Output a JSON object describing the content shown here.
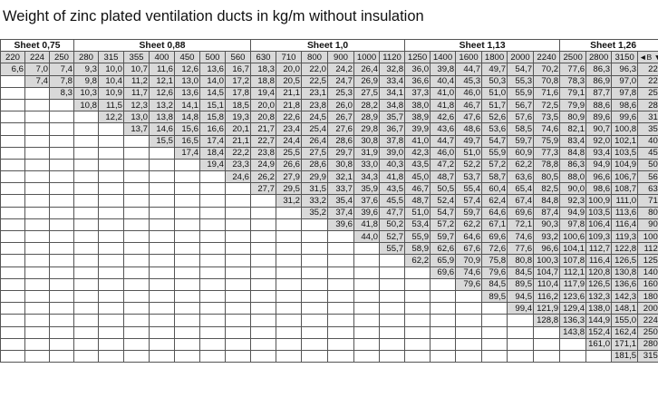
{
  "title": "Weight of zinc plated ventilation ducts in kg/m without insulation",
  "sheet_groups": [
    {
      "label": "Sheet 0,75",
      "span": 3
    },
    {
      "label": "Sheet 0,88",
      "span": 7
    },
    {
      "label": "Sheet 1,0",
      "span": 6
    },
    {
      "label": "Sheet 1,13",
      "span": 6
    },
    {
      "label": "Sheet 1,26",
      "span": 4
    }
  ],
  "widths": [
    "220",
    "224",
    "250",
    "280",
    "315",
    "355",
    "400",
    "450",
    "500",
    "560",
    "630",
    "710",
    "800",
    "900",
    "1000",
    "1120",
    "1250",
    "1400",
    "1600",
    "1800",
    "2000",
    "2240",
    "2500",
    "2800",
    "3150"
  ],
  "corner_label": "◄B ▼H",
  "rows": [
    {
      "h": "220",
      "v": [
        "6,6",
        "7,0",
        "7,4",
        "9,3",
        "10,0",
        "10,7",
        "11,6",
        "12,6",
        "13,6",
        "16,7",
        "18,3",
        "20,0",
        "22,0",
        "24,2",
        "26,4",
        "32,8",
        "36,0",
        "39,8",
        "44,7",
        "49,7",
        "54,7",
        "70,2",
        "77,6",
        "86,3",
        "96,3"
      ]
    },
    {
      "h": "224",
      "v": [
        "",
        "7,4",
        "7,8",
        "9,8",
        "10,4",
        "11,2",
        "12,1",
        "13,0",
        "14,0",
        "17,2",
        "18,8",
        "20,5",
        "22,5",
        "24,7",
        "26,9",
        "33,4",
        "36,6",
        "40,4",
        "45,3",
        "50,3",
        "55,3",
        "70,8",
        "78,3",
        "86,9",
        "97,0"
      ]
    },
    {
      "h": "250",
      "v": [
        "",
        "",
        "8,3",
        "10,3",
        "10,9",
        "11,7",
        "12,6",
        "13,6",
        "14,5",
        "17,8",
        "19,4",
        "21,1",
        "23,1",
        "25,3",
        "27,5",
        "34,1",
        "37,3",
        "41,0",
        "46,0",
        "51,0",
        "55,9",
        "71,6",
        "79,1",
        "87,7",
        "97,8"
      ]
    },
    {
      "h": "280",
      "v": [
        "",
        "",
        "",
        "10,8",
        "11,5",
        "12,3",
        "13,2",
        "14,1",
        "15,1",
        "18,5",
        "20,0",
        "21,8",
        "23,8",
        "26,0",
        "28,2",
        "34,8",
        "38,0",
        "41,8",
        "46,7",
        "51,7",
        "56,7",
        "72,5",
        "79,9",
        "88,6",
        "98,6"
      ]
    },
    {
      "h": "315",
      "v": [
        "",
        "",
        "",
        "",
        "12,2",
        "13,0",
        "13,8",
        "14,8",
        "15,8",
        "19,3",
        "20,8",
        "22,6",
        "24,5",
        "26,7",
        "28,9",
        "35,7",
        "38,9",
        "42,6",
        "47,6",
        "52,6",
        "57,6",
        "73,5",
        "80,9",
        "89,6",
        "99,6"
      ]
    },
    {
      "h": "355",
      "v": [
        "",
        "",
        "",
        "",
        "",
        "13,7",
        "14,6",
        "15,6",
        "16,6",
        "20,1",
        "21,7",
        "23,4",
        "25,4",
        "27,6",
        "29,8",
        "36,7",
        "39,9",
        "43,6",
        "48,6",
        "53,6",
        "58,5",
        "74,6",
        "82,1",
        "90,7",
        "100,8"
      ]
    },
    {
      "h": "400",
      "v": [
        "",
        "",
        "",
        "",
        "",
        "",
        "15,5",
        "16,5",
        "17,4",
        "21,1",
        "22,7",
        "24,4",
        "26,4",
        "28,6",
        "30,8",
        "37,8",
        "41,0",
        "44,7",
        "49,7",
        "54,7",
        "59,7",
        "75,9",
        "83,4",
        "92,0",
        "102,1"
      ]
    },
    {
      "h": "450",
      "v": [
        "",
        "",
        "",
        "",
        "",
        "",
        "",
        "17,4",
        "18,4",
        "22,2",
        "23,8",
        "25,5",
        "27,5",
        "29,7",
        "31,9",
        "39,0",
        "42,3",
        "46,0",
        "51,0",
        "55,9",
        "60,9",
        "77,3",
        "84,8",
        "93,4",
        "103,5"
      ]
    },
    {
      "h": "500",
      "v": [
        "",
        "",
        "",
        "",
        "",
        "",
        "",
        "",
        "19,4",
        "23,3",
        "24,9",
        "26,6",
        "28,6",
        "30,8",
        "33,0",
        "40,3",
        "43,5",
        "47,2",
        "52,2",
        "57,2",
        "62,2",
        "78,8",
        "86,3",
        "94,9",
        "104,9"
      ]
    },
    {
      "h": "560",
      "v": [
        "",
        "",
        "",
        "",
        "",
        "",
        "",
        "",
        "",
        "24,6",
        "26,2",
        "27,9",
        "29,9",
        "32,1",
        "34,3",
        "41,8",
        "45,0",
        "48,7",
        "53,7",
        "58,7",
        "63,6",
        "80,5",
        "88,0",
        "96,6",
        "106,7"
      ]
    },
    {
      "h": "630",
      "v": [
        "",
        "",
        "",
        "",
        "",
        "",
        "",
        "",
        "",
        "",
        "27,7",
        "29,5",
        "31,5",
        "33,7",
        "35,9",
        "43,5",
        "46,7",
        "50,5",
        "55,4",
        "60,4",
        "65,4",
        "82,5",
        "90,0",
        "98,6",
        "108,7"
      ]
    },
    {
      "h": "710",
      "v": [
        "",
        "",
        "",
        "",
        "",
        "",
        "",
        "",
        "",
        "",
        "",
        "31,2",
        "33,2",
        "35,4",
        "37,6",
        "45,5",
        "48,7",
        "52,4",
        "57,4",
        "62,4",
        "67,4",
        "84,8",
        "92,3",
        "100,9",
        "111,0"
      ]
    },
    {
      "h": "800",
      "v": [
        "",
        "",
        "",
        "",
        "",
        "",
        "",
        "",
        "",
        "",
        "",
        "",
        "35,2",
        "37,4",
        "39,6",
        "47,7",
        "51,0",
        "54,7",
        "59,7",
        "64,6",
        "69,6",
        "87,4",
        "94,9",
        "103,5",
        "113,6"
      ]
    },
    {
      "h": "900",
      "v": [
        "",
        "",
        "",
        "",
        "",
        "",
        "",
        "",
        "",
        "",
        "",
        "",
        "",
        "39,6",
        "41,8",
        "50,2",
        "53,4",
        "57,2",
        "62,2",
        "67,1",
        "72,1",
        "90,3",
        "97,8",
        "106,4",
        "116,4"
      ]
    },
    {
      "h": "1000",
      "v": [
        "",
        "",
        "",
        "",
        "",
        "",
        "",
        "",
        "",
        "",
        "",
        "",
        "",
        "",
        "44,0",
        "52,7",
        "55,9",
        "59,7",
        "64,6",
        "69,6",
        "74,6",
        "93,2",
        "100,6",
        "109,3",
        "119,3"
      ]
    },
    {
      "h": "1120",
      "v": [
        "",
        "",
        "",
        "",
        "",
        "",
        "",
        "",
        "",
        "",
        "",
        "",
        "",
        "",
        "",
        "55,7",
        "58,9",
        "62,6",
        "67,6",
        "72,6",
        "77,6",
        "96,6",
        "104,1",
        "112,7",
        "122,8"
      ]
    },
    {
      "h": "1250",
      "v": [
        "",
        "",
        "",
        "",
        "",
        "",
        "",
        "",
        "",
        "",
        "",
        "",
        "",
        "",
        "",
        "",
        "62,2",
        "65,9",
        "70,9",
        "75,8",
        "80,8",
        "100,3",
        "107,8",
        "116,4",
        "126,5"
      ]
    },
    {
      "h": "1400",
      "v": [
        "",
        "",
        "",
        "",
        "",
        "",
        "",
        "",
        "",
        "",
        "",
        "",
        "",
        "",
        "",
        "",
        "",
        "69,6",
        "74,6",
        "79,6",
        "84,5",
        "104,7",
        "112,1",
        "120,8",
        "130,8"
      ]
    },
    {
      "h": "1600",
      "v": [
        "",
        "",
        "",
        "",
        "",
        "",
        "",
        "",
        "",
        "",
        "",
        "",
        "",
        "",
        "",
        "",
        "",
        "",
        "79,6",
        "84,5",
        "89,5",
        "110,4",
        "117,9",
        "126,5",
        "136,6"
      ]
    },
    {
      "h": "1800",
      "v": [
        "",
        "",
        "",
        "",
        "",
        "",
        "",
        "",
        "",
        "",
        "",
        "",
        "",
        "",
        "",
        "",
        "",
        "",
        "",
        "89,5",
        "94,5",
        "116,2",
        "123,6",
        "132,3",
        "142,3"
      ]
    },
    {
      "h": "2000",
      "v": [
        "",
        "",
        "",
        "",
        "",
        "",
        "",
        "",
        "",
        "",
        "",
        "",
        "",
        "",
        "",
        "",
        "",
        "",
        "",
        "",
        "99,4",
        "121,9",
        "129,4",
        "138,0",
        "148,1"
      ]
    },
    {
      "h": "2240",
      "v": [
        "",
        "",
        "",
        "",
        "",
        "",
        "",
        "",
        "",
        "",
        "",
        "",
        "",
        "",
        "",
        "",
        "",
        "",
        "",
        "",
        "",
        "128,8",
        "136,3",
        "144,9",
        "155,0"
      ]
    },
    {
      "h": "2500",
      "v": [
        "",
        "",
        "",
        "",
        "",
        "",
        "",
        "",
        "",
        "",
        "",
        "",
        "",
        "",
        "",
        "",
        "",
        "",
        "",
        "",
        "",
        "",
        "143,8",
        "152,4",
        "162,4"
      ]
    },
    {
      "h": "2800",
      "v": [
        "",
        "",
        "",
        "",
        "",
        "",
        "",
        "",
        "",
        "",
        "",
        "",
        "",
        "",
        "",
        "",
        "",
        "",
        "",
        "",
        "",
        "",
        "",
        "161,0",
        "171,1"
      ]
    },
    {
      "h": "3150",
      "v": [
        "",
        "",
        "",
        "",
        "",
        "",
        "",
        "",
        "",
        "",
        "",
        "",
        "",
        "",
        "",
        "",
        "",
        "",
        "",
        "",
        "",
        "",
        "",
        "",
        "181,5"
      ]
    }
  ]
}
